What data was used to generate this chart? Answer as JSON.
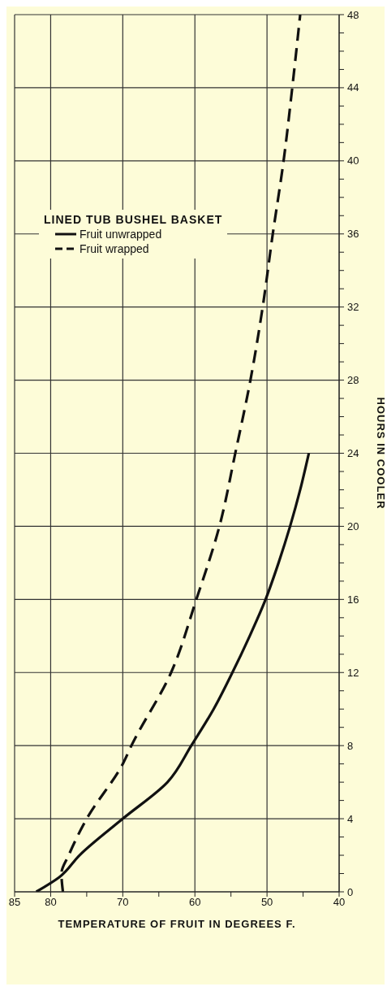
{
  "chart_data": {
    "type": "line",
    "xlabel": "TEMPERATURE OF FRUIT IN DEGREES F.",
    "ylabel": "HOURS IN COOLER",
    "legend_title": "LINED TUB BUSHEL BASKET",
    "legend": "top left",
    "grid": true,
    "marker": "none",
    "xlim": [
      85,
      40
    ],
    "xticks": [
      40,
      {
        "value": 45,
        "label": null
      },
      50,
      {
        "value": 55,
        "label": null
      },
      60,
      {
        "value": 65,
        "label": null
      },
      70,
      {
        "value": 75,
        "label": null
      },
      80,
      85
    ],
    "ylim": [
      0,
      48
    ],
    "yticks": [
      0,
      {
        "value": 1,
        "label": null
      },
      {
        "value": 2,
        "label": null
      },
      {
        "value": 3,
        "label": null
      },
      4,
      {
        "value": 5,
        "label": null
      },
      {
        "value": 6,
        "label": null
      },
      {
        "value": 7,
        "label": null
      },
      8,
      {
        "value": 9,
        "label": null
      },
      {
        "value": 10,
        "label": null
      },
      {
        "value": 11,
        "label": null
      },
      12,
      {
        "value": 13,
        "label": null
      },
      {
        "value": 14,
        "label": null
      },
      {
        "value": 15,
        "label": null
      },
      16,
      {
        "value": 17,
        "label": null
      },
      {
        "value": 18,
        "label": null
      },
      {
        "value": 19,
        "label": null
      },
      20,
      {
        "value": 21,
        "label": null
      },
      {
        "value": 22,
        "label": null
      },
      {
        "value": 23,
        "label": null
      },
      24,
      {
        "value": 25,
        "label": null
      },
      {
        "value": 26,
        "label": null
      },
      {
        "value": 27,
        "label": null
      },
      28,
      {
        "value": 29,
        "label": null
      },
      {
        "value": 30,
        "label": null
      },
      {
        "value": 31,
        "label": null
      },
      32,
      {
        "value": 33,
        "label": null
      },
      {
        "value": 34,
        "label": null
      },
      {
        "value": 35,
        "label": null
      },
      36,
      {
        "value": 37,
        "label": null
      },
      {
        "value": 38,
        "label": null
      },
      {
        "value": 39,
        "label": null
      },
      40,
      {
        "value": 41,
        "label": null
      },
      {
        "value": 42,
        "label": null
      },
      {
        "value": 43,
        "label": null
      },
      44,
      {
        "value": 45,
        "label": null
      },
      {
        "value": 46,
        "label": null
      },
      {
        "value": 47,
        "label": null
      },
      48
    ],
    "series": [
      {
        "name": "Fruit unwrapped",
        "color": "#111111",
        "line_style": "solid",
        "x": [
          82,
          78.8,
          76,
          70,
          63.8,
          60.5,
          57.4,
          54.8,
          52.4,
          50.2,
          48.4,
          46.8,
          45.4,
          44.2
        ],
        "values": [
          0,
          0.8,
          2,
          4,
          6,
          8,
          10,
          12,
          14,
          16,
          18,
          20,
          22,
          24
        ]
      },
      {
        "name": "Fruit wrapped",
        "color": "#111111",
        "line_style": "dashed",
        "x": [
          78.3,
          78.5,
          77.5,
          75,
          70,
          68.8,
          63.3,
          59.8,
          56.6,
          54.4,
          52.3,
          50.6,
          49.2,
          47.7,
          46.5,
          45.4
        ],
        "values": [
          0,
          1,
          2,
          4,
          7,
          8,
          12,
          16,
          20,
          24,
          28,
          32,
          36,
          40,
          44,
          48
        ]
      }
    ]
  }
}
